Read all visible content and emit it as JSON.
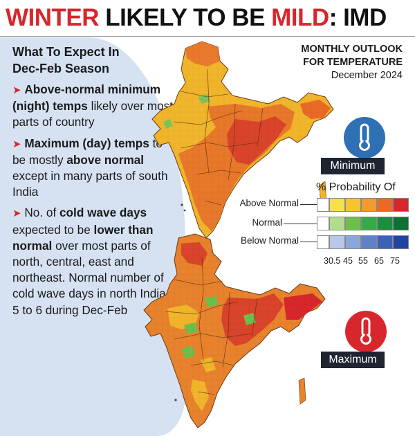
{
  "headline": {
    "part1": "WINTER",
    "part2": " LIKELY TO BE ",
    "part3": "MILD",
    "part4": ": IMD"
  },
  "left_panel": {
    "heading_line1": "What To Expect In",
    "heading_line2": "Dec-Feb Season",
    "bullet_glyph": "➤",
    "bullet1": {
      "bold1": "Above-normal minimum (night) temps",
      "text1": " likely over most parts of country"
    },
    "bullet2": {
      "bold1": "Maximum (day) temps",
      "text1": " to be mostly ",
      "bold2": "above normal",
      "text2": " except in many parts of south India"
    },
    "bullet3": {
      "text1": "No. of ",
      "bold1": "cold wave days",
      "text2": " expected to be ",
      "bold2": "lower than normal",
      "text3": " over most parts of north, central, east and northeast. Normal number of cold wave days in north India is 5 to 6 during Dec-Feb"
    }
  },
  "outlook": {
    "line1": "MONTHLY OUTLOOK",
    "line2": "FOR TEMPERATURE",
    "line3": "December 2024"
  },
  "maps": {
    "minimum_label": "Minimum",
    "maximum_label": "Maximum"
  },
  "legend": {
    "title": "% Probability Of",
    "rows": [
      "Above Normal",
      "Normal",
      "Below Normal"
    ],
    "ticks": [
      "30.5",
      "45",
      "55",
      "65",
      "75"
    ],
    "colors": {
      "above": [
        "#ffffff",
        "#f7e04a",
        "#f7c431",
        "#f29a2e",
        "#ea6a25",
        "#d7262c"
      ],
      "normal": [
        "#ffffff",
        "#b3dc8c",
        "#6cc04a",
        "#39a846",
        "#1e8d3c",
        "#0f7033"
      ],
      "below": [
        "#ffffff",
        "#b8c8ea",
        "#8aa6dc",
        "#5e82c9",
        "#3b62b5",
        "#1f45a0"
      ]
    }
  }
}
